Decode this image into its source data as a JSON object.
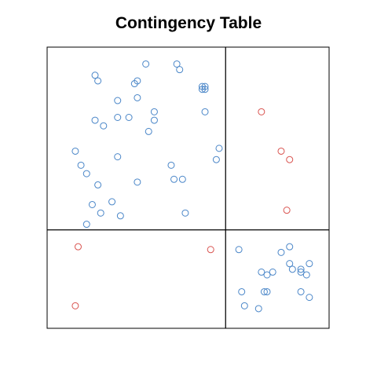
{
  "chart_data": {
    "type": "scatter",
    "title": "Contingency Table",
    "xlabel": "",
    "ylabel": "",
    "xlim": [
      0,
      1
    ],
    "ylim": [
      0,
      1
    ],
    "grid": false,
    "legend": "none",
    "cells": [
      {
        "name": "",
        "x_range": [
          0,
          0.633
        ],
        "y_range": [
          0.35,
          1
        ],
        "color": "#4a86c8"
      },
      {
        "name": "",
        "x_range": [
          0.633,
          1
        ],
        "y_range": [
          0.35,
          1
        ],
        "color": "#d9534f"
      },
      {
        "name": "",
        "x_range": [
          0,
          0.633
        ],
        "y_range": [
          0,
          0.35
        ],
        "color": "#d9534f"
      },
      {
        "name": "",
        "x_range": [
          0.633,
          1
        ],
        "y_range": [
          0,
          0.35
        ],
        "color": "#4a86c8"
      }
    ],
    "series": [
      {
        "name": "",
        "color": "#4a86c8",
        "points": [
          [
            0.17,
            0.9
          ],
          [
            0.18,
            0.88
          ],
          [
            0.35,
            0.94
          ],
          [
            0.46,
            0.94
          ],
          [
            0.47,
            0.92
          ],
          [
            0.31,
            0.87
          ],
          [
            0.32,
            0.88
          ],
          [
            0.55,
            0.86
          ],
          [
            0.56,
            0.86
          ],
          [
            0.55,
            0.85
          ],
          [
            0.56,
            0.85
          ],
          [
            0.32,
            0.82
          ],
          [
            0.25,
            0.81
          ],
          [
            0.38,
            0.77
          ],
          [
            0.56,
            0.77
          ],
          [
            0.17,
            0.74
          ],
          [
            0.2,
            0.72
          ],
          [
            0.25,
            0.75
          ],
          [
            0.29,
            0.75
          ],
          [
            0.38,
            0.74
          ],
          [
            0.36,
            0.7
          ],
          [
            0.61,
            0.64
          ],
          [
            0.1,
            0.63
          ],
          [
            0.6,
            0.6
          ],
          [
            0.25,
            0.61
          ],
          [
            0.12,
            0.58
          ],
          [
            0.44,
            0.58
          ],
          [
            0.14,
            0.55
          ],
          [
            0.45,
            0.53
          ],
          [
            0.48,
            0.53
          ],
          [
            0.18,
            0.51
          ],
          [
            0.32,
            0.52
          ],
          [
            0.16,
            0.44
          ],
          [
            0.23,
            0.45
          ],
          [
            0.19,
            0.41
          ],
          [
            0.26,
            0.4
          ],
          [
            0.49,
            0.41
          ],
          [
            0.14,
            0.37
          ]
        ]
      },
      {
        "name": "",
        "color": "#d9534f",
        "points": [
          [
            0.76,
            0.77
          ],
          [
            0.83,
            0.63
          ],
          [
            0.86,
            0.6
          ],
          [
            0.85,
            0.42
          ]
        ]
      },
      {
        "name": "",
        "color": "#d9534f",
        "points": [
          [
            0.11,
            0.29
          ],
          [
            0.58,
            0.28
          ],
          [
            0.1,
            0.08
          ]
        ]
      },
      {
        "name": "",
        "color": "#4a86c8",
        "points": [
          [
            0.68,
            0.28
          ],
          [
            0.86,
            0.29
          ],
          [
            0.83,
            0.27
          ],
          [
            0.86,
            0.23
          ],
          [
            0.93,
            0.23
          ],
          [
            0.76,
            0.2
          ],
          [
            0.8,
            0.2
          ],
          [
            0.87,
            0.21
          ],
          [
            0.9,
            0.21
          ],
          [
            0.9,
            0.2
          ],
          [
            0.78,
            0.19
          ],
          [
            0.92,
            0.19
          ],
          [
            0.69,
            0.13
          ],
          [
            0.77,
            0.13
          ],
          [
            0.78,
            0.13
          ],
          [
            0.9,
            0.13
          ],
          [
            0.93,
            0.11
          ],
          [
            0.7,
            0.08
          ],
          [
            0.75,
            0.07
          ]
        ]
      }
    ]
  }
}
